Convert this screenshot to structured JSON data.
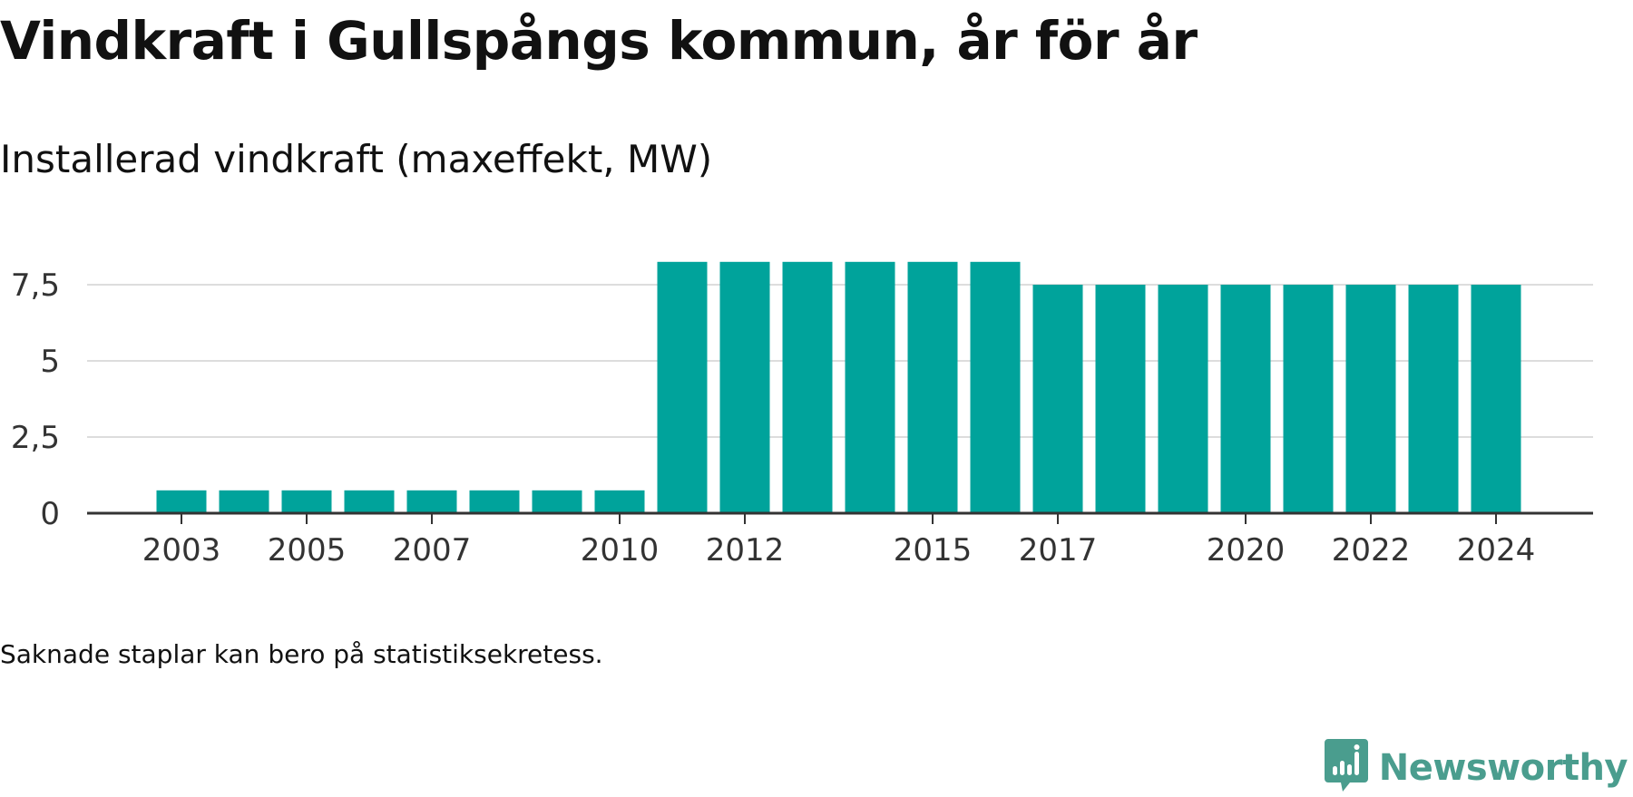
{
  "title": "Vindkraft i Gullspångs kommun, år för år",
  "subtitle": "Installerad vindkraft (maxeffekt, MW)",
  "footnote": "Saknade staplar kan bero på statistiksekretess.",
  "brand": {
    "name": "Newsworthy",
    "logo_icon": "newsworthy-logo-icon"
  },
  "colors": {
    "bar": "#00a39b",
    "grid": "#dddddd",
    "axis": "#333333",
    "brand": "#4a9d8e"
  },
  "chart_data": {
    "type": "bar",
    "title": "Vindkraft i Gullspångs kommun, år för år",
    "subtitle": "Installerad vindkraft (maxeffekt, MW)",
    "xlabel": "",
    "ylabel": "",
    "categories": [
      "2003",
      "2004",
      "2005",
      "2006",
      "2007",
      "2008",
      "2009",
      "2010",
      "2011",
      "2012",
      "2013",
      "2014",
      "2015",
      "2016",
      "2017",
      "2018",
      "2019",
      "2020",
      "2021",
      "2022",
      "2023",
      "2024"
    ],
    "values": [
      0.75,
      0.75,
      0.75,
      0.75,
      0.75,
      0.75,
      0.75,
      0.75,
      8.25,
      8.25,
      8.25,
      8.25,
      8.25,
      8.25,
      7.5,
      7.5,
      7.5,
      7.5,
      7.5,
      7.5,
      7.5,
      7.5
    ],
    "x_tick_labels": [
      "2003",
      "2005",
      "2007",
      "2010",
      "2012",
      "2015",
      "2017",
      "2020",
      "2022",
      "2024"
    ],
    "y_ticks": [
      0,
      2.5,
      5,
      7.5
    ],
    "y_tick_labels": [
      "0",
      "2,5",
      "5",
      "7,5"
    ],
    "ylim": [
      0,
      8.25
    ],
    "grid": true,
    "legend": "none"
  }
}
